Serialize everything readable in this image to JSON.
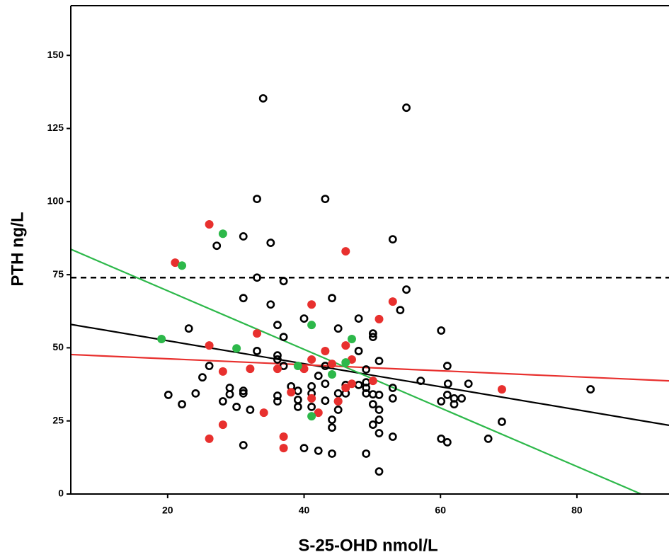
{
  "chart_data": {
    "type": "scatter",
    "x_label": "S-25-OHD nmol/L",
    "y_label": "PTH ng/L",
    "xlim": [
      5.8,
      93.5
    ],
    "ylim": [
      0,
      167
    ],
    "xticks": [
      20,
      40,
      60,
      80
    ],
    "yticks": [
      0,
      25,
      50,
      75,
      100,
      125,
      150
    ],
    "grid": false,
    "reference_line": {
      "y": 74,
      "color": "#000000",
      "style": "dashed"
    },
    "series": [
      {
        "color": "#000000",
        "marker": "open",
        "x": [
          34.0,
          55.0,
          33.1,
          43.1,
          31.1,
          27.2,
          35.1,
          53.0,
          33.1,
          37.0,
          55.0,
          31.1,
          44.1,
          35.1,
          54.1,
          23.1,
          36.1,
          45.0,
          48.0,
          60.1,
          40.0,
          37.0,
          50.1,
          50.1,
          33.1,
          36.1,
          36.1,
          48.0,
          51.0,
          37.0,
          43.1,
          61.0,
          26.1,
          25.1,
          49.1,
          42.1,
          43.1,
          38.1,
          41.1,
          29.1,
          31.1,
          31.1,
          24.1,
          20.1,
          22.1,
          28.1,
          29.1,
          32.1,
          30.1,
          36.1,
          36.1,
          39.1,
          41.1,
          39.1,
          39.1,
          41.1,
          45.0,
          45.0,
          46.1,
          46.1,
          48.0,
          49.1,
          49.1,
          50.1,
          50.1,
          51.0,
          51.0,
          51.0,
          50.1,
          51.0,
          53.0,
          53.0,
          53.0,
          44.1,
          44.1,
          45.0,
          49.1,
          43.1,
          57.1,
          61.1,
          64.1,
          62.0,
          60.1,
          61.0,
          62.0,
          63.1,
          60.1,
          61.0,
          67.0,
          69.0,
          82.0,
          31.1,
          40.0,
          42.1,
          44.1,
          49.1,
          51.0
        ],
        "values": [
          135.3,
          132.1,
          100.9,
          100.9,
          88.1,
          84.9,
          85.9,
          87.1,
          74.0,
          72.8,
          69.9,
          67.0,
          67.0,
          64.8,
          62.9,
          56.6,
          57.8,
          56.6,
          60.0,
          55.9,
          60.0,
          53.7,
          54.9,
          53.7,
          48.9,
          47.4,
          46.0,
          48.9,
          45.5,
          43.8,
          43.8,
          43.8,
          43.8,
          39.9,
          42.6,
          40.4,
          37.7,
          36.8,
          36.8,
          36.3,
          35.3,
          34.4,
          34.4,
          33.9,
          30.7,
          31.7,
          34.1,
          28.8,
          29.8,
          31.7,
          33.6,
          35.3,
          34.4,
          32.2,
          29.8,
          29.8,
          34.4,
          31.7,
          34.4,
          37.3,
          37.3,
          36.3,
          34.4,
          34.1,
          30.7,
          33.9,
          28.8,
          25.4,
          23.7,
          20.8,
          36.3,
          32.7,
          19.6,
          25.4,
          22.7,
          28.8,
          38.2,
          31.9,
          38.7,
          37.7,
          37.7,
          32.7,
          31.7,
          33.9,
          30.7,
          32.7,
          18.9,
          17.7,
          18.9,
          24.7,
          35.8,
          16.7,
          15.7,
          14.8,
          13.8,
          13.8,
          7.7
        ]
      },
      {
        "color": "#e8302e",
        "marker": "filled",
        "x": [
          26.1,
          21.1,
          46.1,
          41.1,
          53.0,
          51.0,
          33.1,
          26.1,
          43.1,
          46.1,
          41.1,
          47.0,
          40.0,
          36.1,
          32.1,
          28.1,
          44.1,
          38.1,
          41.1,
          45.0,
          47.0,
          46.1,
          34.1,
          42.1,
          28.1,
          26.1,
          37.0,
          37.0,
          69.0,
          50.1
        ],
        "values": [
          92.2,
          79.1,
          83.0,
          64.8,
          65.8,
          59.8,
          54.9,
          50.8,
          48.9,
          50.8,
          46.0,
          46.0,
          42.8,
          42.8,
          42.8,
          41.9,
          44.5,
          34.8,
          32.7,
          31.7,
          37.7,
          36.3,
          27.8,
          27.8,
          23.7,
          18.9,
          19.6,
          15.7,
          35.8,
          38.7
        ]
      },
      {
        "color": "#2db84a",
        "marker": "filled",
        "x": [
          28.1,
          22.1,
          41.1,
          47.0,
          19.1,
          30.1,
          39.1,
          46.1,
          44.1,
          41.1
        ],
        "values": [
          89.0,
          78.1,
          57.8,
          53.0,
          53.0,
          49.8,
          43.8,
          45.0,
          40.9,
          26.6
        ]
      }
    ],
    "fit_lines": [
      {
        "color": "#000000",
        "x": [
          5.8,
          93.5
        ],
        "values": [
          58.0,
          23.5
        ]
      },
      {
        "color": "#e8302e",
        "x": [
          5.8,
          93.5
        ],
        "values": [
          47.7,
          38.7
        ]
      },
      {
        "color": "#2db84a",
        "x": [
          5.8,
          89.4
        ],
        "values": [
          83.7,
          0
        ]
      }
    ]
  }
}
